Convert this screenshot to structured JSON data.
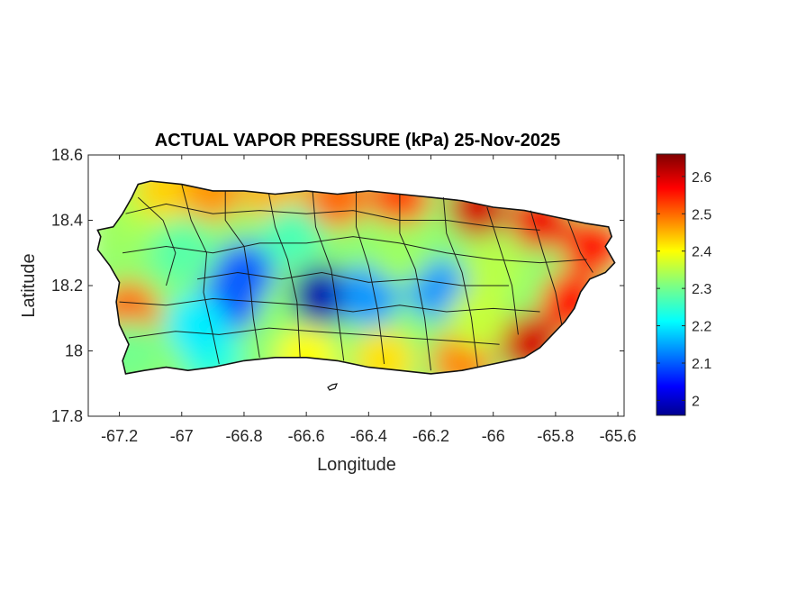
{
  "chart_data": {
    "type": "heatmap",
    "title": "ACTUAL VAPOR PRESSURE (kPa) 25-Nov-2025",
    "xlabel": "Longitude",
    "ylabel": "Latitude",
    "xlim": [
      -67.3,
      -65.58
    ],
    "ylim": [
      17.8,
      18.6
    ],
    "xticks": [
      -67.2,
      -67,
      -66.8,
      -66.6,
      -66.4,
      -66.2,
      -66,
      -65.8,
      -65.6
    ],
    "yticks": [
      17.8,
      18,
      18.2,
      18.4,
      18.6
    ],
    "xtick_labels": [
      "-67.2",
      "-67",
      "-66.8",
      "-66.6",
      "-66.4",
      "-66.2",
      "-66",
      "-65.8",
      "-65.6"
    ],
    "ytick_labels": [
      "17.8",
      "18",
      "18.2",
      "18.4",
      "18.6"
    ],
    "colorbar": {
      "colormap": "jet",
      "range": [
        1.96,
        2.66
      ],
      "ticks": [
        2,
        2.1,
        2.2,
        2.3,
        2.4,
        2.5,
        2.6
      ],
      "tick_labels": [
        "2",
        "2.1",
        "2.2",
        "2.3",
        "2.4",
        "2.5",
        "2.6"
      ]
    },
    "field_samples": [
      {
        "lon": -67.2,
        "lat": 18.36,
        "value": 2.33
      },
      {
        "lon": -67.12,
        "lat": 18.46,
        "value": 2.35
      },
      {
        "lon": -67.05,
        "lat": 18.5,
        "value": 2.43
      },
      {
        "lon": -66.9,
        "lat": 18.49,
        "value": 2.47
      },
      {
        "lon": -66.7,
        "lat": 18.48,
        "value": 2.45
      },
      {
        "lon": -66.5,
        "lat": 18.47,
        "value": 2.5
      },
      {
        "lon": -66.3,
        "lat": 18.47,
        "value": 2.52
      },
      {
        "lon": -66.05,
        "lat": 18.44,
        "value": 2.6
      },
      {
        "lon": -65.85,
        "lat": 18.4,
        "value": 2.58
      },
      {
        "lon": -65.68,
        "lat": 18.32,
        "value": 2.56
      },
      {
        "lon": -65.75,
        "lat": 18.15,
        "value": 2.56
      },
      {
        "lon": -65.88,
        "lat": 18.02,
        "value": 2.6
      },
      {
        "lon": -66.1,
        "lat": 17.97,
        "value": 2.48
      },
      {
        "lon": -66.35,
        "lat": 17.97,
        "value": 2.42
      },
      {
        "lon": -66.6,
        "lat": 17.98,
        "value": 2.4
      },
      {
        "lon": -66.9,
        "lat": 17.98,
        "value": 2.24
      },
      {
        "lon": -67.17,
        "lat": 18.12,
        "value": 2.5
      },
      {
        "lon": -67.17,
        "lat": 18.0,
        "value": 2.3
      },
      {
        "lon": -66.85,
        "lat": 18.15,
        "value": 2.08
      },
      {
        "lon": -66.8,
        "lat": 18.24,
        "value": 2.1
      },
      {
        "lon": -66.55,
        "lat": 18.17,
        "value": 1.98
      },
      {
        "lon": -66.4,
        "lat": 18.17,
        "value": 2.14
      },
      {
        "lon": -66.18,
        "lat": 18.19,
        "value": 2.14
      },
      {
        "lon": -66.65,
        "lat": 18.35,
        "value": 2.27
      },
      {
        "lon": -66.3,
        "lat": 18.3,
        "value": 2.33
      },
      {
        "lon": -66.0,
        "lat": 18.25,
        "value": 2.35
      },
      {
        "lon": -66.05,
        "lat": 18.1,
        "value": 2.36
      },
      {
        "lon": -67.0,
        "lat": 18.3,
        "value": 2.28
      },
      {
        "lon": -66.95,
        "lat": 18.08,
        "value": 2.2
      }
    ]
  }
}
